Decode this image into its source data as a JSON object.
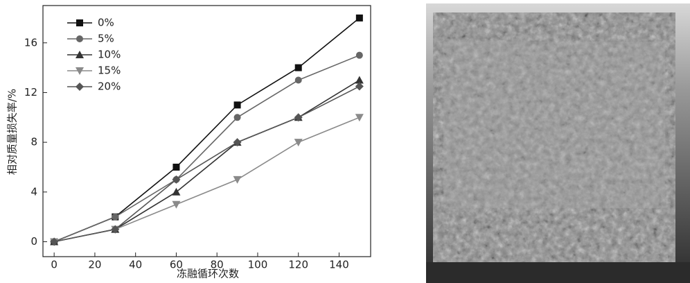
{
  "chart_data": {
    "type": "line",
    "x_label": "冻融循环次数",
    "y_label": "相对质量损失率/%",
    "x": [
      0,
      30,
      60,
      90,
      120,
      150
    ],
    "series": [
      {
        "name": "0%",
        "color": "#111111",
        "marker": "square",
        "values": [
          0,
          2,
          6,
          11,
          14,
          18
        ]
      },
      {
        "name": "5%",
        "color": "#666666",
        "marker": "circle",
        "values": [
          0,
          2,
          5,
          10,
          13,
          15
        ]
      },
      {
        "name": "10%",
        "color": "#333333",
        "marker": "triangle-up",
        "values": [
          0,
          1,
          4,
          8,
          10,
          13
        ]
      },
      {
        "name": "15%",
        "color": "#8a8a8a",
        "marker": "triangle-down",
        "values": [
          0,
          1,
          3,
          5,
          8,
          10
        ]
      },
      {
        "name": "20%",
        "color": "#555555",
        "marker": "diamond",
        "values": [
          0,
          1,
          5,
          8,
          10,
          12.5
        ]
      }
    ],
    "xlim": [
      -5.5,
      155.5
    ],
    "ylim": [
      -1.2,
      19
    ],
    "xticks": [
      0,
      20,
      40,
      60,
      80,
      100,
      120,
      140
    ],
    "yticks": [
      0,
      4,
      8,
      12,
      16
    ],
    "legend": "upper-left"
  }
}
